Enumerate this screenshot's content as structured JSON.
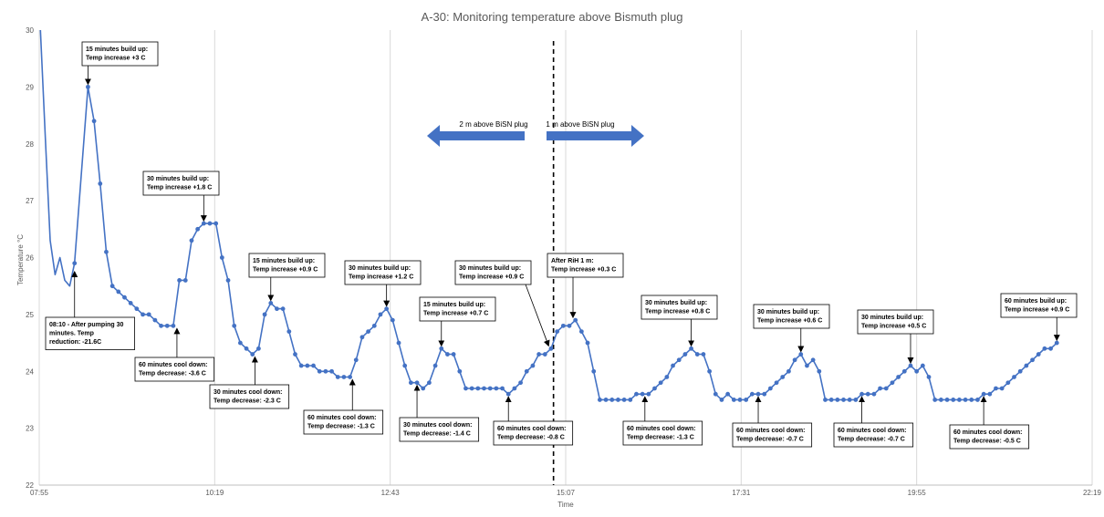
{
  "chart_data": {
    "type": "line",
    "title": "A-30: Monitoring temperature above Bismuth plug",
    "xlabel": "Time",
    "ylabel": "Temperature °C",
    "xlim": [
      "07:55",
      "22:19"
    ],
    "ylim": [
      22,
      30
    ],
    "x_ticks": [
      "07:55",
      "10:19",
      "12:43",
      "15:07",
      "17:31",
      "19:55",
      "22:19"
    ],
    "y_ticks": [
      22,
      23,
      24,
      25,
      26,
      27,
      28,
      29,
      30
    ],
    "grid": "vertical",
    "colors": {
      "line": "#4472c4",
      "arrow": "#4472c4",
      "grid": "#d9d9d9",
      "divider": "#000000"
    },
    "series": [
      {
        "points": [
          [
            "08:24",
            25.9
          ],
          [
            "08:35",
            29.0
          ],
          [
            "08:40",
            28.4
          ],
          [
            "08:45",
            27.3
          ],
          [
            "08:50",
            26.1
          ],
          [
            "08:55",
            25.5
          ],
          [
            "09:00",
            25.4
          ],
          [
            "09:05",
            25.3
          ],
          [
            "09:10",
            25.2
          ],
          [
            "09:15",
            25.1
          ],
          [
            "09:20",
            25.0
          ],
          [
            "09:25",
            25.0
          ],
          [
            "09:30",
            24.9
          ],
          [
            "09:35",
            24.8
          ],
          [
            "09:40",
            24.8
          ],
          [
            "09:45",
            24.8
          ],
          [
            "09:50",
            25.6
          ],
          [
            "09:55",
            25.6
          ],
          [
            "10:00",
            26.3
          ],
          [
            "10:05",
            26.5
          ],
          [
            "10:10",
            26.6
          ],
          [
            "10:15",
            26.6
          ],
          [
            "10:20",
            26.6
          ],
          [
            "10:25",
            26.0
          ],
          [
            "10:30",
            25.6
          ],
          [
            "10:35",
            24.8
          ],
          [
            "10:40",
            24.5
          ],
          [
            "10:45",
            24.4
          ],
          [
            "10:50",
            24.3
          ],
          [
            "10:55",
            24.4
          ],
          [
            "11:00",
            25.0
          ],
          [
            "11:05",
            25.2
          ],
          [
            "11:10",
            25.1
          ],
          [
            "11:15",
            25.1
          ],
          [
            "11:20",
            24.7
          ],
          [
            "11:25",
            24.3
          ],
          [
            "11:30",
            24.1
          ],
          [
            "11:35",
            24.1
          ],
          [
            "11:40",
            24.1
          ],
          [
            "11:45",
            24.0
          ],
          [
            "11:50",
            24.0
          ],
          [
            "11:55",
            24.0
          ],
          [
            "12:00",
            23.9
          ],
          [
            "12:05",
            23.9
          ],
          [
            "12:10",
            23.9
          ],
          [
            "12:15",
            24.2
          ],
          [
            "12:20",
            24.6
          ],
          [
            "12:25",
            24.7
          ],
          [
            "12:30",
            24.8
          ],
          [
            "12:35",
            25.0
          ],
          [
            "12:40",
            25.1
          ],
          [
            "12:45",
            24.9
          ],
          [
            "12:50",
            24.5
          ],
          [
            "12:55",
            24.1
          ],
          [
            "13:00",
            23.8
          ],
          [
            "13:05",
            23.8
          ],
          [
            "13:10",
            23.7
          ],
          [
            "13:15",
            23.8
          ],
          [
            "13:20",
            24.1
          ],
          [
            "13:25",
            24.4
          ],
          [
            "13:30",
            24.3
          ],
          [
            "13:35",
            24.3
          ],
          [
            "13:40",
            24.0
          ],
          [
            "13:45",
            23.7
          ],
          [
            "13:50",
            23.7
          ],
          [
            "13:55",
            23.7
          ],
          [
            "14:00",
            23.7
          ],
          [
            "14:05",
            23.7
          ],
          [
            "14:10",
            23.7
          ],
          [
            "14:15",
            23.7
          ],
          [
            "14:20",
            23.6
          ],
          [
            "14:25",
            23.7
          ],
          [
            "14:30",
            23.8
          ],
          [
            "14:35",
            24.0
          ],
          [
            "14:40",
            24.1
          ],
          [
            "14:45",
            24.3
          ],
          [
            "14:50",
            24.3
          ],
          [
            "14:55",
            24.4
          ],
          [
            "15:00",
            24.7
          ],
          [
            "15:05",
            24.8
          ],
          [
            "15:10",
            24.8
          ],
          [
            "15:15",
            24.9
          ],
          [
            "15:20",
            24.7
          ],
          [
            "15:25",
            24.5
          ],
          [
            "15:30",
            24.0
          ],
          [
            "15:35",
            23.5
          ],
          [
            "15:40",
            23.5
          ],
          [
            "15:45",
            23.5
          ],
          [
            "15:50",
            23.5
          ],
          [
            "15:55",
            23.5
          ],
          [
            "16:00",
            23.5
          ],
          [
            "16:05",
            23.6
          ],
          [
            "16:10",
            23.6
          ],
          [
            "16:15",
            23.6
          ],
          [
            "16:20",
            23.7
          ],
          [
            "16:25",
            23.8
          ],
          [
            "16:30",
            23.9
          ],
          [
            "16:35",
            24.1
          ],
          [
            "16:40",
            24.2
          ],
          [
            "16:45",
            24.3
          ],
          [
            "16:50",
            24.4
          ],
          [
            "16:55",
            24.3
          ],
          [
            "17:00",
            24.3
          ],
          [
            "17:05",
            24.0
          ],
          [
            "17:10",
            23.6
          ],
          [
            "17:15",
            23.5
          ],
          [
            "17:20",
            23.6
          ],
          [
            "17:25",
            23.5
          ],
          [
            "17:30",
            23.5
          ],
          [
            "17:35",
            23.5
          ],
          [
            "17:40",
            23.6
          ],
          [
            "17:45",
            23.6
          ],
          [
            "17:50",
            23.6
          ],
          [
            "17:55",
            23.7
          ],
          [
            "18:00",
            23.8
          ],
          [
            "18:05",
            23.9
          ],
          [
            "18:10",
            24.0
          ],
          [
            "18:15",
            24.2
          ],
          [
            "18:20",
            24.3
          ],
          [
            "18:25",
            24.1
          ],
          [
            "18:30",
            24.2
          ],
          [
            "18:35",
            24.0
          ],
          [
            "18:40",
            23.5
          ],
          [
            "18:45",
            23.5
          ],
          [
            "18:50",
            23.5
          ],
          [
            "18:55",
            23.5
          ],
          [
            "19:00",
            23.5
          ],
          [
            "19:05",
            23.5
          ],
          [
            "19:10",
            23.6
          ],
          [
            "19:15",
            23.6
          ],
          [
            "19:20",
            23.6
          ],
          [
            "19:25",
            23.7
          ],
          [
            "19:30",
            23.7
          ],
          [
            "19:35",
            23.8
          ],
          [
            "19:40",
            23.9
          ],
          [
            "19:45",
            24.0
          ],
          [
            "19:50",
            24.1
          ],
          [
            "19:55",
            24.0
          ],
          [
            "20:00",
            24.1
          ],
          [
            "20:05",
            23.9
          ],
          [
            "20:10",
            23.5
          ],
          [
            "20:15",
            23.5
          ],
          [
            "20:20",
            23.5
          ],
          [
            "20:25",
            23.5
          ],
          [
            "20:30",
            23.5
          ],
          [
            "20:35",
            23.5
          ],
          [
            "20:40",
            23.5
          ],
          [
            "20:45",
            23.5
          ],
          [
            "20:50",
            23.6
          ],
          [
            "20:55",
            23.6
          ],
          [
            "21:00",
            23.7
          ],
          [
            "21:05",
            23.7
          ],
          [
            "21:10",
            23.8
          ],
          [
            "21:15",
            23.9
          ],
          [
            "21:20",
            24.0
          ],
          [
            "21:25",
            24.1
          ],
          [
            "21:30",
            24.2
          ],
          [
            "21:35",
            24.3
          ],
          [
            "21:40",
            24.4
          ],
          [
            "21:45",
            24.4
          ],
          [
            "21:50",
            24.5
          ]
        ]
      }
    ],
    "divider": {
      "x": "14:57",
      "style": "dashed"
    },
    "regions": [
      {
        "label": "2 m above BiSN plug",
        "direction": "left"
      },
      {
        "label": "1 m above BiSN plug",
        "direction": "right"
      }
    ],
    "annotations": [
      {
        "lines": [
          "15 minutes build up:",
          "Temp increase +3 C"
        ],
        "target": [
          "08:35",
          29.0
        ],
        "anchor": "top"
      },
      {
        "lines": [
          "08:10 - After pumping 30",
          "minutes. Temp",
          "reduction: -21.6C"
        ],
        "target": [
          "08:24",
          25.8
        ],
        "anchor": "bottom"
      },
      {
        "lines": [
          "30 minutes build up:",
          "Temp increase +1.8 C"
        ],
        "target": [
          "10:10",
          26.6
        ],
        "anchor": "top"
      },
      {
        "lines": [
          "60 minutes cool down:",
          "Temp decrease: -3.6 C"
        ],
        "target": [
          "09:48",
          24.8
        ],
        "anchor": "bottom"
      },
      {
        "lines": [
          "15 minutes build up:",
          "Temp increase +0.9 C"
        ],
        "target": [
          "11:05",
          25.2
        ],
        "anchor": "top"
      },
      {
        "lines": [
          "30 minutes cool down:",
          "Temp decrease: -2.3 C"
        ],
        "target": [
          "10:52",
          24.3
        ],
        "anchor": "bottom"
      },
      {
        "lines": [
          "30 minutes build up:",
          "Temp increase +1.2 C"
        ],
        "target": [
          "12:40",
          25.1
        ],
        "anchor": "top"
      },
      {
        "lines": [
          "60 minutes cool down:",
          "Temp decrease: -1.3 C"
        ],
        "target": [
          "12:12",
          23.9
        ],
        "anchor": "bottom"
      },
      {
        "lines": [
          "15 minutes build up:",
          "Temp increase +0.7 C"
        ],
        "target": [
          "13:25",
          24.4
        ],
        "anchor": "top"
      },
      {
        "lines": [
          "30 minutes cool down:",
          "Temp decrease: -1.4 C"
        ],
        "target": [
          "13:05",
          23.8
        ],
        "anchor": "bottom"
      },
      {
        "lines": [
          "30 minutes build up:",
          "Temp increase +0.9 C"
        ],
        "target": [
          "14:53",
          24.4
        ],
        "anchor": "top"
      },
      {
        "lines": [
          "60 minutes cool down:",
          "Temp decrease: -0.8 C"
        ],
        "target": [
          "14:20",
          23.6
        ],
        "anchor": "bottom"
      },
      {
        "lines": [
          "After RiH 1 m:",
          "Temp increase +0.3 C"
        ],
        "target": [
          "15:13",
          24.9
        ],
        "anchor": "top"
      },
      {
        "lines": [
          "30 minutes build up:",
          "Temp increase +0.8 C"
        ],
        "target": [
          "16:50",
          24.4
        ],
        "anchor": "top"
      },
      {
        "lines": [
          "60 minutes cool down:",
          "Temp decrease: -1.3 C"
        ],
        "target": [
          "16:12",
          23.6
        ],
        "anchor": "bottom"
      },
      {
        "lines": [
          "30 minutes build up:",
          "Temp increase +0.6 C"
        ],
        "target": [
          "18:20",
          24.3
        ],
        "anchor": "top"
      },
      {
        "lines": [
          "60 minutes cool down:",
          "Temp decrease: -0.7 C"
        ],
        "target": [
          "17:45",
          23.6
        ],
        "anchor": "bottom"
      },
      {
        "lines": [
          "30 minutes build up:",
          "Temp increase +0.5 C"
        ],
        "target": [
          "19:50",
          24.1
        ],
        "anchor": "top"
      },
      {
        "lines": [
          "60 minutes cool down:",
          "Temp decrease: -0.7 C"
        ],
        "target": [
          "19:10",
          23.6
        ],
        "anchor": "bottom"
      },
      {
        "lines": [
          "60 minutes build up:",
          "Temp increase +0.9 C"
        ],
        "target": [
          "21:50",
          24.5
        ],
        "anchor": "top"
      },
      {
        "lines": [
          "60 minutes cool down:",
          "Temp decrease: -0.5 C"
        ],
        "target": [
          "20:50",
          23.6
        ],
        "anchor": "bottom"
      }
    ]
  }
}
